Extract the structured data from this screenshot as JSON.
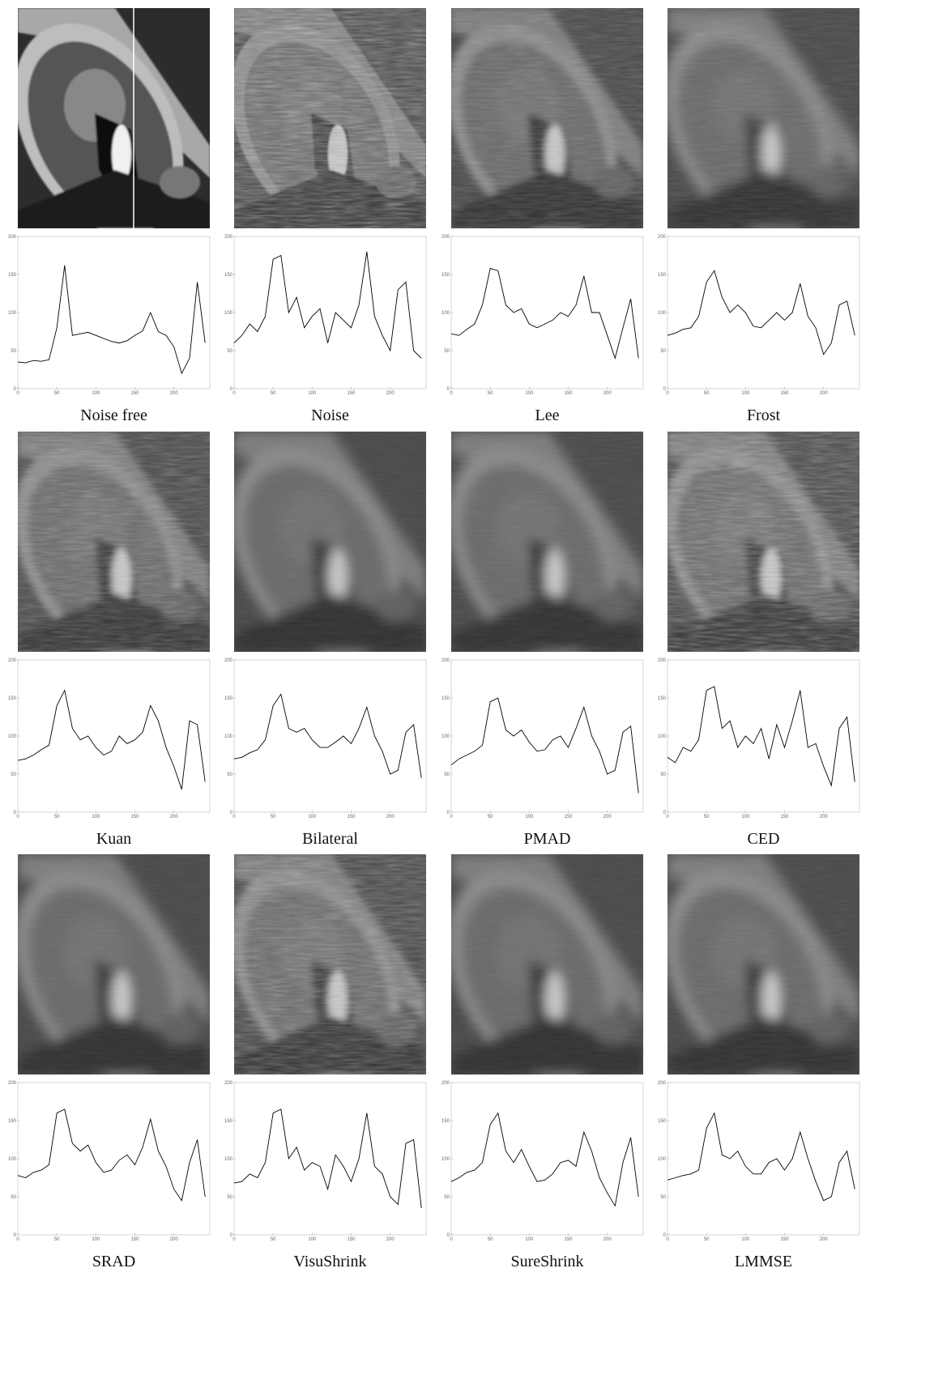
{
  "chart_data": [
    {
      "type": "line",
      "title": "Noise free",
      "color": "#000000",
      "xlim": [
        0,
        246
      ],
      "ylim": [
        0,
        200
      ],
      "xticks": [
        0,
        50,
        100,
        150,
        200
      ],
      "yticks": [
        0,
        50,
        100,
        150,
        200
      ],
      "x": [
        0,
        10,
        20,
        30,
        40,
        50,
        60,
        70,
        80,
        90,
        100,
        110,
        120,
        130,
        140,
        150,
        160,
        170,
        180,
        190,
        200,
        210,
        220,
        230,
        240
      ],
      "values": [
        35,
        34,
        37,
        36,
        38,
        80,
        162,
        70,
        72,
        74,
        70,
        66,
        62,
        60,
        63,
        70,
        76,
        100,
        75,
        70,
        55,
        20,
        40,
        140,
        60
      ]
    },
    {
      "type": "line",
      "title": "Noise",
      "color": "#000000",
      "xlim": [
        0,
        246
      ],
      "ylim": [
        0,
        200
      ],
      "xticks": [
        0,
        50,
        100,
        150,
        200
      ],
      "yticks": [
        0,
        50,
        100,
        150,
        200
      ],
      "x": [
        0,
        10,
        20,
        30,
        40,
        50,
        60,
        70,
        80,
        90,
        100,
        110,
        120,
        130,
        140,
        150,
        160,
        170,
        180,
        190,
        200,
        210,
        220,
        230,
        240
      ],
      "values": [
        60,
        70,
        85,
        75,
        95,
        170,
        175,
        100,
        120,
        80,
        95,
        105,
        60,
        100,
        90,
        80,
        110,
        180,
        95,
        70,
        50,
        130,
        140,
        50,
        40
      ]
    },
    {
      "type": "line",
      "title": "Lee",
      "color": "#000000",
      "xlim": [
        0,
        246
      ],
      "ylim": [
        0,
        200
      ],
      "xticks": [
        0,
        50,
        100,
        150,
        200
      ],
      "yticks": [
        0,
        50,
        100,
        150,
        200
      ],
      "x": [
        0,
        10,
        20,
        30,
        40,
        50,
        60,
        70,
        80,
        90,
        100,
        110,
        120,
        130,
        140,
        150,
        160,
        170,
        180,
        190,
        200,
        210,
        220,
        230,
        240
      ],
      "values": [
        72,
        70,
        78,
        85,
        110,
        158,
        155,
        110,
        100,
        105,
        85,
        80,
        85,
        90,
        100,
        95,
        110,
        148,
        100,
        100,
        70,
        40,
        80,
        118,
        40
      ]
    },
    {
      "type": "line",
      "title": "Frost",
      "color": "#000000",
      "xlim": [
        0,
        246
      ],
      "ylim": [
        0,
        200
      ],
      "xticks": [
        0,
        50,
        100,
        150,
        200
      ],
      "yticks": [
        0,
        50,
        100,
        150,
        200
      ],
      "x": [
        0,
        10,
        20,
        30,
        40,
        50,
        60,
        70,
        80,
        90,
        100,
        110,
        120,
        130,
        140,
        150,
        160,
        170,
        180,
        190,
        200,
        210,
        220,
        230,
        240
      ],
      "values": [
        70,
        73,
        78,
        80,
        95,
        140,
        155,
        120,
        100,
        110,
        100,
        82,
        80,
        90,
        100,
        90,
        100,
        138,
        95,
        80,
        45,
        60,
        110,
        115,
        70
      ]
    },
    {
      "type": "line",
      "title": "Kuan",
      "color": "#000000",
      "xlim": [
        0,
        246
      ],
      "ylim": [
        0,
        200
      ],
      "xticks": [
        0,
        50,
        100,
        150,
        200
      ],
      "yticks": [
        0,
        50,
        100,
        150,
        200
      ],
      "x": [
        0,
        10,
        20,
        30,
        40,
        50,
        60,
        70,
        80,
        90,
        100,
        110,
        120,
        130,
        140,
        150,
        160,
        170,
        180,
        190,
        200,
        210,
        220,
        230,
        240
      ],
      "values": [
        68,
        70,
        75,
        82,
        88,
        140,
        160,
        110,
        95,
        100,
        85,
        75,
        80,
        100,
        90,
        95,
        105,
        140,
        120,
        85,
        60,
        30,
        120,
        115,
        40
      ]
    },
    {
      "type": "line",
      "title": "Bilateral",
      "color": "#000000",
      "xlim": [
        0,
        246
      ],
      "ylim": [
        0,
        200
      ],
      "xticks": [
        0,
        50,
        100,
        150,
        200
      ],
      "yticks": [
        0,
        50,
        100,
        150,
        200
      ],
      "x": [
        0,
        10,
        20,
        30,
        40,
        50,
        60,
        70,
        80,
        90,
        100,
        110,
        120,
        130,
        140,
        150,
        160,
        170,
        180,
        190,
        200,
        210,
        220,
        230,
        240
      ],
      "values": [
        70,
        72,
        78,
        82,
        95,
        140,
        155,
        110,
        105,
        110,
        95,
        85,
        85,
        92,
        100,
        90,
        110,
        138,
        100,
        80,
        50,
        55,
        105,
        115,
        45
      ]
    },
    {
      "type": "line",
      "title": "PMAD",
      "color": "#000000",
      "xlim": [
        0,
        246
      ],
      "ylim": [
        0,
        200
      ],
      "xticks": [
        0,
        50,
        100,
        150,
        200
      ],
      "yticks": [
        0,
        50,
        100,
        150,
        200
      ],
      "x": [
        0,
        10,
        20,
        30,
        40,
        50,
        60,
        70,
        80,
        90,
        100,
        110,
        120,
        130,
        140,
        150,
        160,
        170,
        180,
        190,
        200,
        210,
        220,
        230,
        240
      ],
      "values": [
        62,
        70,
        75,
        80,
        88,
        145,
        150,
        108,
        100,
        108,
        92,
        80,
        82,
        95,
        100,
        85,
        110,
        138,
        100,
        80,
        50,
        55,
        105,
        113,
        25
      ]
    },
    {
      "type": "line",
      "title": "CED",
      "color": "#000000",
      "xlim": [
        0,
        246
      ],
      "ylim": [
        0,
        200
      ],
      "xticks": [
        0,
        50,
        100,
        150,
        200
      ],
      "yticks": [
        0,
        50,
        100,
        150,
        200
      ],
      "x": [
        0,
        10,
        20,
        30,
        40,
        50,
        60,
        70,
        80,
        90,
        100,
        110,
        120,
        130,
        140,
        150,
        160,
        170,
        180,
        190,
        200,
        210,
        220,
        230,
        240
      ],
      "values": [
        72,
        65,
        85,
        80,
        95,
        160,
        165,
        110,
        120,
        85,
        100,
        90,
        110,
        70,
        115,
        85,
        120,
        160,
        85,
        90,
        60,
        35,
        110,
        125,
        40
      ]
    },
    {
      "type": "line",
      "title": "SRAD",
      "color": "#000000",
      "xlim": [
        0,
        246
      ],
      "ylim": [
        0,
        200
      ],
      "xticks": [
        0,
        50,
        100,
        150,
        200
      ],
      "yticks": [
        0,
        50,
        100,
        150,
        200
      ],
      "x": [
        0,
        10,
        20,
        30,
        40,
        50,
        60,
        70,
        80,
        90,
        100,
        110,
        120,
        130,
        140,
        150,
        160,
        170,
        180,
        190,
        200,
        210,
        220,
        230,
        240
      ],
      "values": [
        78,
        75,
        82,
        85,
        92,
        160,
        165,
        120,
        110,
        118,
        95,
        82,
        85,
        98,
        105,
        92,
        115,
        152,
        110,
        90,
        60,
        45,
        95,
        125,
        50
      ]
    },
    {
      "type": "line",
      "title": "VisuShrink",
      "color": "#000000",
      "xlim": [
        0,
        246
      ],
      "ylim": [
        0,
        200
      ],
      "xticks": [
        0,
        50,
        100,
        150,
        200
      ],
      "yticks": [
        0,
        50,
        100,
        150,
        200
      ],
      "x": [
        0,
        10,
        20,
        30,
        40,
        50,
        60,
        70,
        80,
        90,
        100,
        110,
        120,
        130,
        140,
        150,
        160,
        170,
        180,
        190,
        200,
        210,
        220,
        230,
        240
      ],
      "values": [
        68,
        70,
        80,
        75,
        95,
        160,
        165,
        100,
        115,
        85,
        95,
        90,
        60,
        105,
        90,
        70,
        100,
        160,
        90,
        80,
        50,
        40,
        120,
        125,
        35
      ]
    },
    {
      "type": "line",
      "title": "SureShrink",
      "color": "#000000",
      "xlim": [
        0,
        246
      ],
      "ylim": [
        0,
        200
      ],
      "xticks": [
        0,
        50,
        100,
        150,
        200
      ],
      "yticks": [
        0,
        50,
        100,
        150,
        200
      ],
      "x": [
        0,
        10,
        20,
        30,
        40,
        50,
        60,
        70,
        80,
        90,
        100,
        110,
        120,
        130,
        140,
        150,
        160,
        170,
        180,
        190,
        200,
        210,
        220,
        230,
        240
      ],
      "values": [
        70,
        75,
        82,
        85,
        95,
        145,
        160,
        110,
        95,
        112,
        90,
        70,
        72,
        80,
        95,
        98,
        90,
        135,
        110,
        75,
        55,
        38,
        95,
        128,
        50
      ]
    },
    {
      "type": "line",
      "title": "LMMSE",
      "color": "#000000",
      "xlim": [
        0,
        246
      ],
      "ylim": [
        0,
        200
      ],
      "xticks": [
        0,
        50,
        100,
        150,
        200
      ],
      "yticks": [
        0,
        50,
        100,
        150,
        200
      ],
      "x": [
        0,
        10,
        20,
        30,
        40,
        50,
        60,
        70,
        80,
        90,
        100,
        110,
        120,
        130,
        140,
        150,
        160,
        170,
        180,
        190,
        200,
        210,
        220,
        230,
        240
      ],
      "values": [
        72,
        75,
        78,
        80,
        85,
        140,
        160,
        105,
        100,
        110,
        90,
        80,
        80,
        95,
        100,
        85,
        100,
        135,
        100,
        70,
        45,
        50,
        95,
        110,
        60
      ]
    }
  ]
}
